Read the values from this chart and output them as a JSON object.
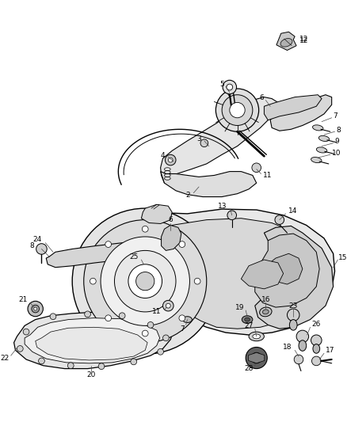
{
  "background_color": "#ffffff",
  "figsize": [
    4.38,
    5.33
  ],
  "dpi": 100,
  "label_fontsize": 6.5
}
